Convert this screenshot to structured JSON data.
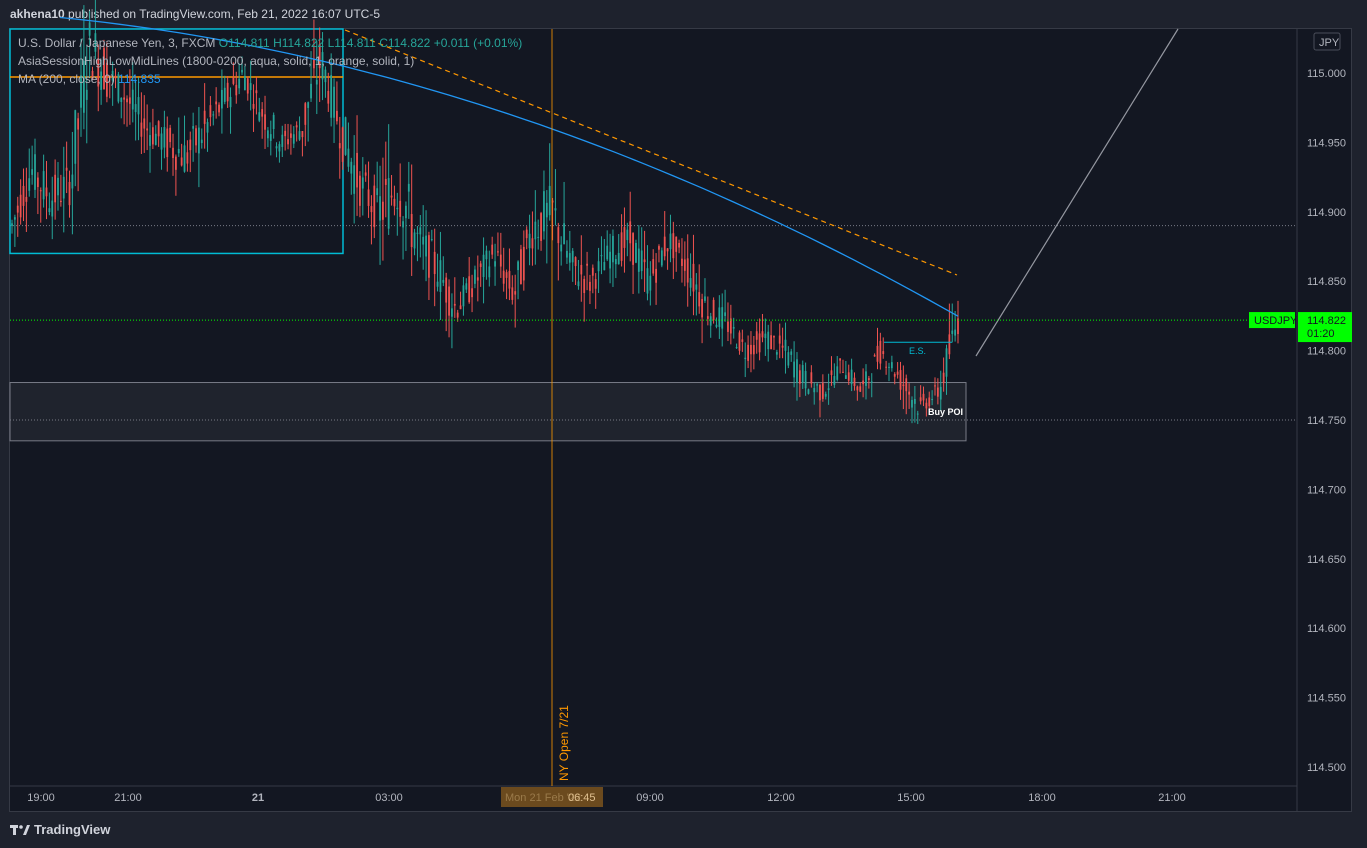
{
  "header": {
    "author": "akhena10",
    "published_text": "published on TradingView.com, Feb 21, 2022 16:07 UTC-5"
  },
  "legend": {
    "symbol": "U.S. Dollar / Japanese Yen, 3, FXCM",
    "open": "O114.811",
    "high": "H114.822",
    "low": "L114.811",
    "close": "C114.822",
    "change": "+0.011 (+0.01%)",
    "indicator1": "AsiaSessionHighLowMidLines (1800-0200, aqua, solid, 1, orange, solid, 1)",
    "indicator2_label": "MA (200, close, 0)",
    "indicator2_value": "114.835"
  },
  "currency_badge": "JPY",
  "price_tag": {
    "symbol": "USDJPY",
    "price": "114.822",
    "countdown": "01:20"
  },
  "annotations": {
    "es": "E.S.",
    "buy_poi": "Buy POI",
    "ny_open": "NY Open 7/21"
  },
  "crosshair_label": {
    "date": "Mon 21 Feb '22",
    "time": "06:45"
  },
  "footer": {
    "brand": "TradingView"
  },
  "colors": {
    "up": "#26a69a",
    "down": "#ef5350",
    "ma": "#2196f3",
    "orange": "#ff9800",
    "aqua": "#00bcd4",
    "last_price": "#00ff00",
    "bg": "#131722"
  },
  "chart_data": {
    "type": "candlestick",
    "title": "U.S. Dollar / Japanese Yen, 3, FXCM",
    "ylim": [
      114.48,
      115.04
    ],
    "y_ticks": [
      "115.000",
      "114.950",
      "114.900",
      "114.850",
      "114.800",
      "114.750",
      "114.700",
      "114.650",
      "114.600",
      "114.550",
      "114.500"
    ],
    "x_ticks": [
      "19:00",
      "21:00",
      "21",
      "03:00",
      "06:00",
      "09:00",
      "12:00",
      "15:00",
      "18:00",
      "21:00"
    ],
    "last_price": 114.822,
    "asia_session": {
      "high": 115.0,
      "low": 114.87,
      "mid": 114.935
    },
    "buy_poi_zone": [
      114.735,
      114.777
    ],
    "es_level": 114.806,
    "dotted_levels": [
      114.89,
      114.75
    ],
    "series_ohlc_approx": [
      [
        114.88,
        114.9,
        114.87,
        114.89
      ],
      [
        114.89,
        114.95,
        114.88,
        114.93
      ],
      [
        114.93,
        114.97,
        114.9,
        114.91
      ],
      [
        114.91,
        114.93,
        114.88,
        114.92
      ],
      [
        114.92,
        115.04,
        114.91,
        115.02
      ],
      [
        115.02,
        115.04,
        114.99,
        115.0
      ],
      [
        115.0,
        115.03,
        114.97,
        114.98
      ],
      [
        114.98,
        115.0,
        114.95,
        114.96
      ],
      [
        114.96,
        114.97,
        114.93,
        114.95
      ],
      [
        114.95,
        114.96,
        114.88,
        114.94
      ],
      [
        114.94,
        114.97,
        114.92,
        114.96
      ],
      [
        114.96,
        114.99,
        114.95,
        114.98
      ],
      [
        114.98,
        115.02,
        114.97,
        115.0
      ],
      [
        115.0,
        115.01,
        114.96,
        114.97
      ],
      [
        114.97,
        114.98,
        114.94,
        114.95
      ],
      [
        114.95,
        114.97,
        114.93,
        114.96
      ],
      [
        114.96,
        115.04,
        114.95,
        115.01
      ],
      [
        115.01,
        115.02,
        114.95,
        114.96
      ],
      [
        114.96,
        114.97,
        114.91,
        114.92
      ],
      [
        114.92,
        114.94,
        114.88,
        114.9
      ],
      [
        114.9,
        114.95,
        114.81,
        114.92
      ],
      [
        114.92,
        114.94,
        114.86,
        114.88
      ],
      [
        114.88,
        114.91,
        114.85,
        114.86
      ],
      [
        114.86,
        114.87,
        114.82,
        114.83
      ],
      [
        114.83,
        114.86,
        114.81,
        114.85
      ],
      [
        114.85,
        114.88,
        114.83,
        114.87
      ],
      [
        114.87,
        114.88,
        114.81,
        114.84
      ],
      [
        114.84,
        114.9,
        114.83,
        114.89
      ],
      [
        114.89,
        114.95,
        114.87,
        114.9
      ],
      [
        114.9,
        114.91,
        114.84,
        114.86
      ],
      [
        114.86,
        114.88,
        114.83,
        114.85
      ],
      [
        114.85,
        114.89,
        114.84,
        114.87
      ],
      [
        114.87,
        114.91,
        114.86,
        114.88
      ],
      [
        114.88,
        114.9,
        114.83,
        114.85
      ],
      [
        114.85,
        114.89,
        114.84,
        114.88
      ],
      [
        114.88,
        114.9,
        114.85,
        114.86
      ],
      [
        114.86,
        114.87,
        114.82,
        114.83
      ],
      [
        114.83,
        114.84,
        114.81,
        114.82
      ],
      [
        114.82,
        114.83,
        114.79,
        114.8
      ],
      [
        114.8,
        114.82,
        114.78,
        114.81
      ],
      [
        114.81,
        114.83,
        114.79,
        114.8
      ],
      [
        114.8,
        114.81,
        114.77,
        114.78
      ],
      [
        114.78,
        114.79,
        114.76,
        114.77
      ],
      [
        114.77,
        114.8,
        114.76,
        114.79
      ],
      [
        114.79,
        114.8,
        114.76,
        114.77
      ],
      [
        114.77,
        114.81,
        114.77,
        114.8
      ],
      [
        114.8,
        114.81,
        114.77,
        114.78
      ],
      [
        114.78,
        114.79,
        114.75,
        114.76
      ],
      [
        114.76,
        114.78,
        114.75,
        114.77
      ],
      [
        114.77,
        114.83,
        114.76,
        114.822
      ]
    ]
  }
}
